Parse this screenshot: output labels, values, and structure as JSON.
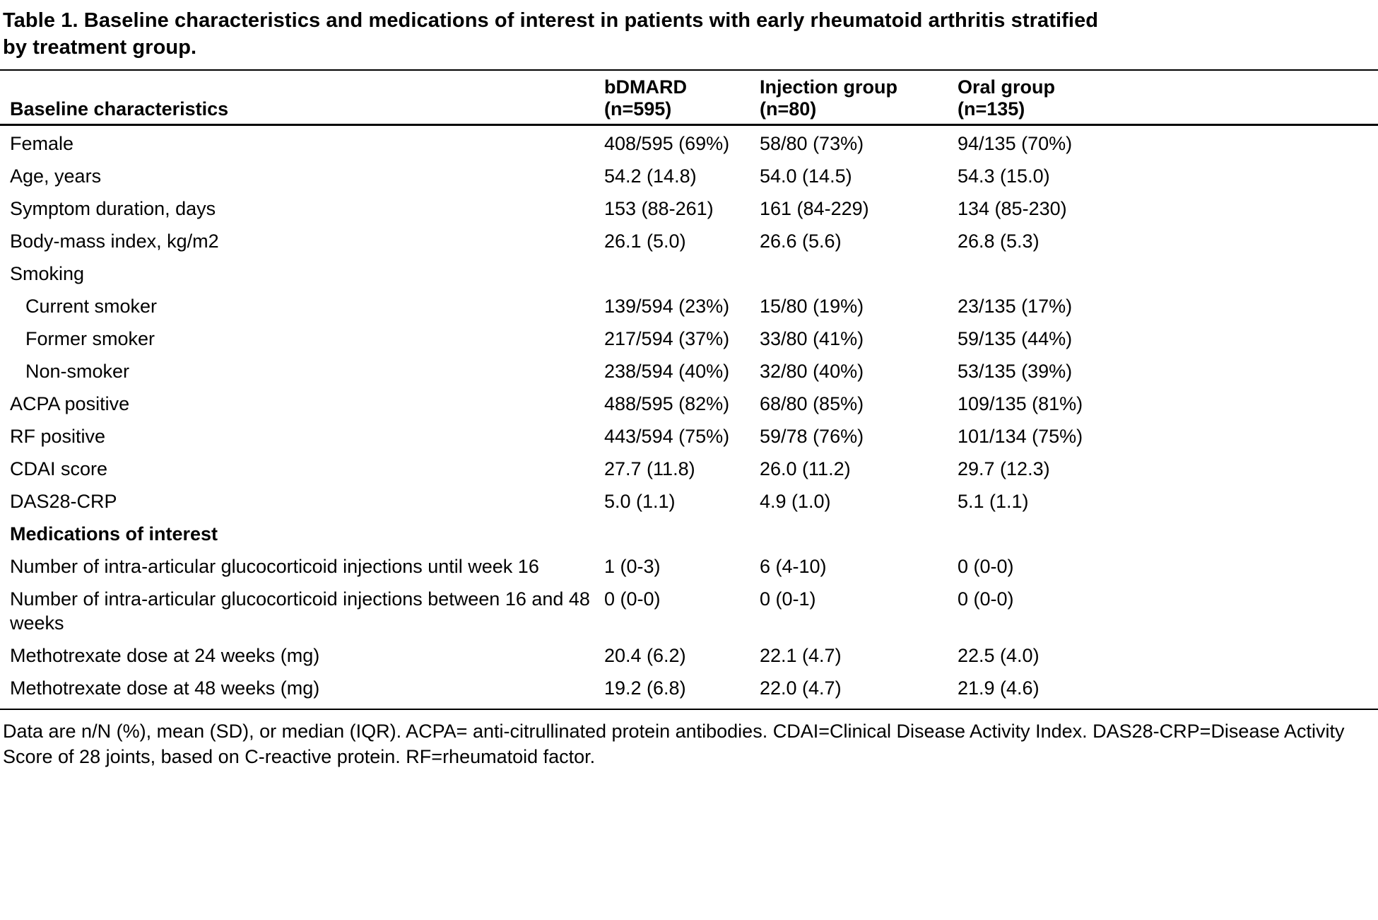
{
  "title": "Table 1. Baseline characteristics and medications of interest in patients with early rheumatoid arthritis stratified by treatment group.",
  "table": {
    "header_label": "Baseline characteristics",
    "columns": [
      {
        "name": "bDMARD",
        "n": "(n=595)"
      },
      {
        "name": "Injection group",
        "n": "(n=80)"
      },
      {
        "name": "Oral group",
        "n": "(n=135)"
      }
    ],
    "rows": [
      {
        "label": "Female",
        "bold": false,
        "indent": false,
        "values": [
          "408/595 (69%)",
          "58/80 (73%)",
          "94/135 (70%)"
        ]
      },
      {
        "label": "Age, years",
        "bold": false,
        "indent": false,
        "values": [
          "54.2 (14.8)",
          "54.0 (14.5)",
          "54.3 (15.0)"
        ]
      },
      {
        "label": "Symptom duration, days",
        "bold": false,
        "indent": false,
        "values": [
          "153 (88-261)",
          "161 (84-229)",
          "134 (85-230)"
        ]
      },
      {
        "label": "Body-mass index, kg/m2",
        "bold": false,
        "indent": false,
        "values": [
          "26.1 (5.0)",
          "26.6 (5.6)",
          "26.8 (5.3)"
        ]
      },
      {
        "label": "Smoking",
        "bold": false,
        "indent": false,
        "values": [
          "",
          "",
          ""
        ]
      },
      {
        "label": "Current smoker",
        "bold": false,
        "indent": true,
        "values": [
          "139/594 (23%)",
          "15/80 (19%)",
          "23/135 (17%)"
        ]
      },
      {
        "label": "Former smoker",
        "bold": false,
        "indent": true,
        "values": [
          "217/594 (37%)",
          "33/80 (41%)",
          "59/135 (44%)"
        ]
      },
      {
        "label": "Non-smoker",
        "bold": false,
        "indent": true,
        "values": [
          "238/594 (40%)",
          "32/80 (40%)",
          "53/135 (39%)"
        ]
      },
      {
        "label": "ACPA positive",
        "bold": false,
        "indent": false,
        "values": [
          "488/595 (82%)",
          "68/80 (85%)",
          "109/135 (81%)"
        ]
      },
      {
        "label": "RF positive",
        "bold": false,
        "indent": false,
        "values": [
          "443/594 (75%)",
          "59/78 (76%)",
          "101/134 (75%)"
        ]
      },
      {
        "label": "CDAI score",
        "bold": false,
        "indent": false,
        "values": [
          "27.7 (11.8)",
          "26.0 (11.2)",
          "29.7 (12.3)"
        ]
      },
      {
        "label": "DAS28-CRP",
        "bold": false,
        "indent": false,
        "values": [
          "5.0 (1.1)",
          "4.9 (1.0)",
          "5.1 (1.1)"
        ]
      },
      {
        "label": "Medications of interest",
        "bold": true,
        "indent": false,
        "values": [
          "",
          "",
          ""
        ]
      },
      {
        "label": "Number of intra-articular glucocorticoid injections until week 16",
        "bold": false,
        "indent": false,
        "values": [
          "1 (0-3)",
          "6 (4-10)",
          "0 (0-0)"
        ]
      },
      {
        "label": "Number of intra-articular glucocorticoid injections between 16 and 48 weeks",
        "bold": false,
        "indent": false,
        "values": [
          "0 (0-0)",
          "0 (0-1)",
          "0 (0-0)"
        ]
      },
      {
        "label": "Methotrexate dose at 24 weeks (mg)",
        "bold": false,
        "indent": false,
        "values": [
          "20.4 (6.2)",
          "22.1 (4.7)",
          "22.5 (4.0)"
        ]
      },
      {
        "label": "Methotrexate dose at 48 weeks (mg)",
        "bold": false,
        "indent": false,
        "values": [
          "19.2 (6.8)",
          "22.0 (4.7)",
          "21.9 (4.6)"
        ]
      }
    ]
  },
  "footnote": "Data are n/N (%), mean (SD), or median (IQR). ACPA= anti-citrullinated protein antibodies. CDAI=Clinical Disease Activity Index. DAS28-CRP=Disease Activity Score of 28 joints, based on C-reactive protein. RF=rheumatoid factor."
}
